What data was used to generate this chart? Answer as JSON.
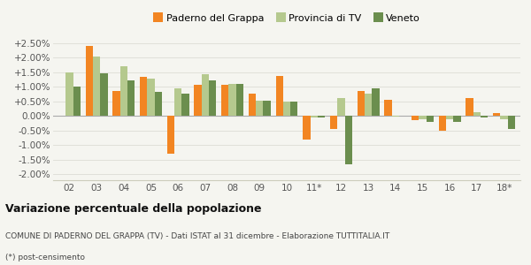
{
  "years": [
    "02",
    "03",
    "04",
    "05",
    "06",
    "07",
    "08",
    "09",
    "10",
    "11*",
    "12",
    "13",
    "14",
    "15",
    "16",
    "17",
    "18*"
  ],
  "paderno": [
    0.0,
    0.024,
    0.0085,
    0.0135,
    -0.013,
    0.0108,
    0.0107,
    0.0075,
    0.0138,
    -0.008,
    -0.0045,
    0.0085,
    0.0055,
    -0.0015,
    -0.005,
    0.0062,
    0.001
  ],
  "provincia": [
    0.0148,
    0.0202,
    0.017,
    0.0127,
    0.0095,
    0.0142,
    0.011,
    0.0053,
    0.005,
    -0.0005,
    0.006,
    0.0075,
    -0.0002,
    -0.0012,
    -0.001,
    0.0013,
    -0.001
  ],
  "veneto": [
    0.0102,
    0.0145,
    0.0122,
    0.0082,
    0.0075,
    0.0122,
    0.011,
    0.0053,
    0.005,
    -0.0005,
    -0.0165,
    0.0094,
    0.0,
    -0.002,
    -0.002,
    -0.0005,
    -0.0045
  ],
  "color_paderno": "#f28522",
  "color_provincia": "#b5c98e",
  "color_veneto": "#6b8e4e",
  "title": "Variazione percentuale della popolazione",
  "subtitle": "COMUNE DI PADERNO DEL GRAPPA (TV) - Dati ISTAT al 31 dicembre - Elaborazione TUTTITALIA.IT",
  "footnote": "(*) post-censimento",
  "legend_labels": [
    "Paderno del Grappa",
    "Provincia di TV",
    "Veneto"
  ],
  "ylim": [
    -0.022,
    0.027
  ],
  "yticks": [
    -0.02,
    -0.015,
    -0.01,
    -0.005,
    0.0,
    0.005,
    0.01,
    0.015,
    0.02,
    0.025
  ],
  "bg_color": "#f5f5f0",
  "grid_color": "#ddddd5"
}
